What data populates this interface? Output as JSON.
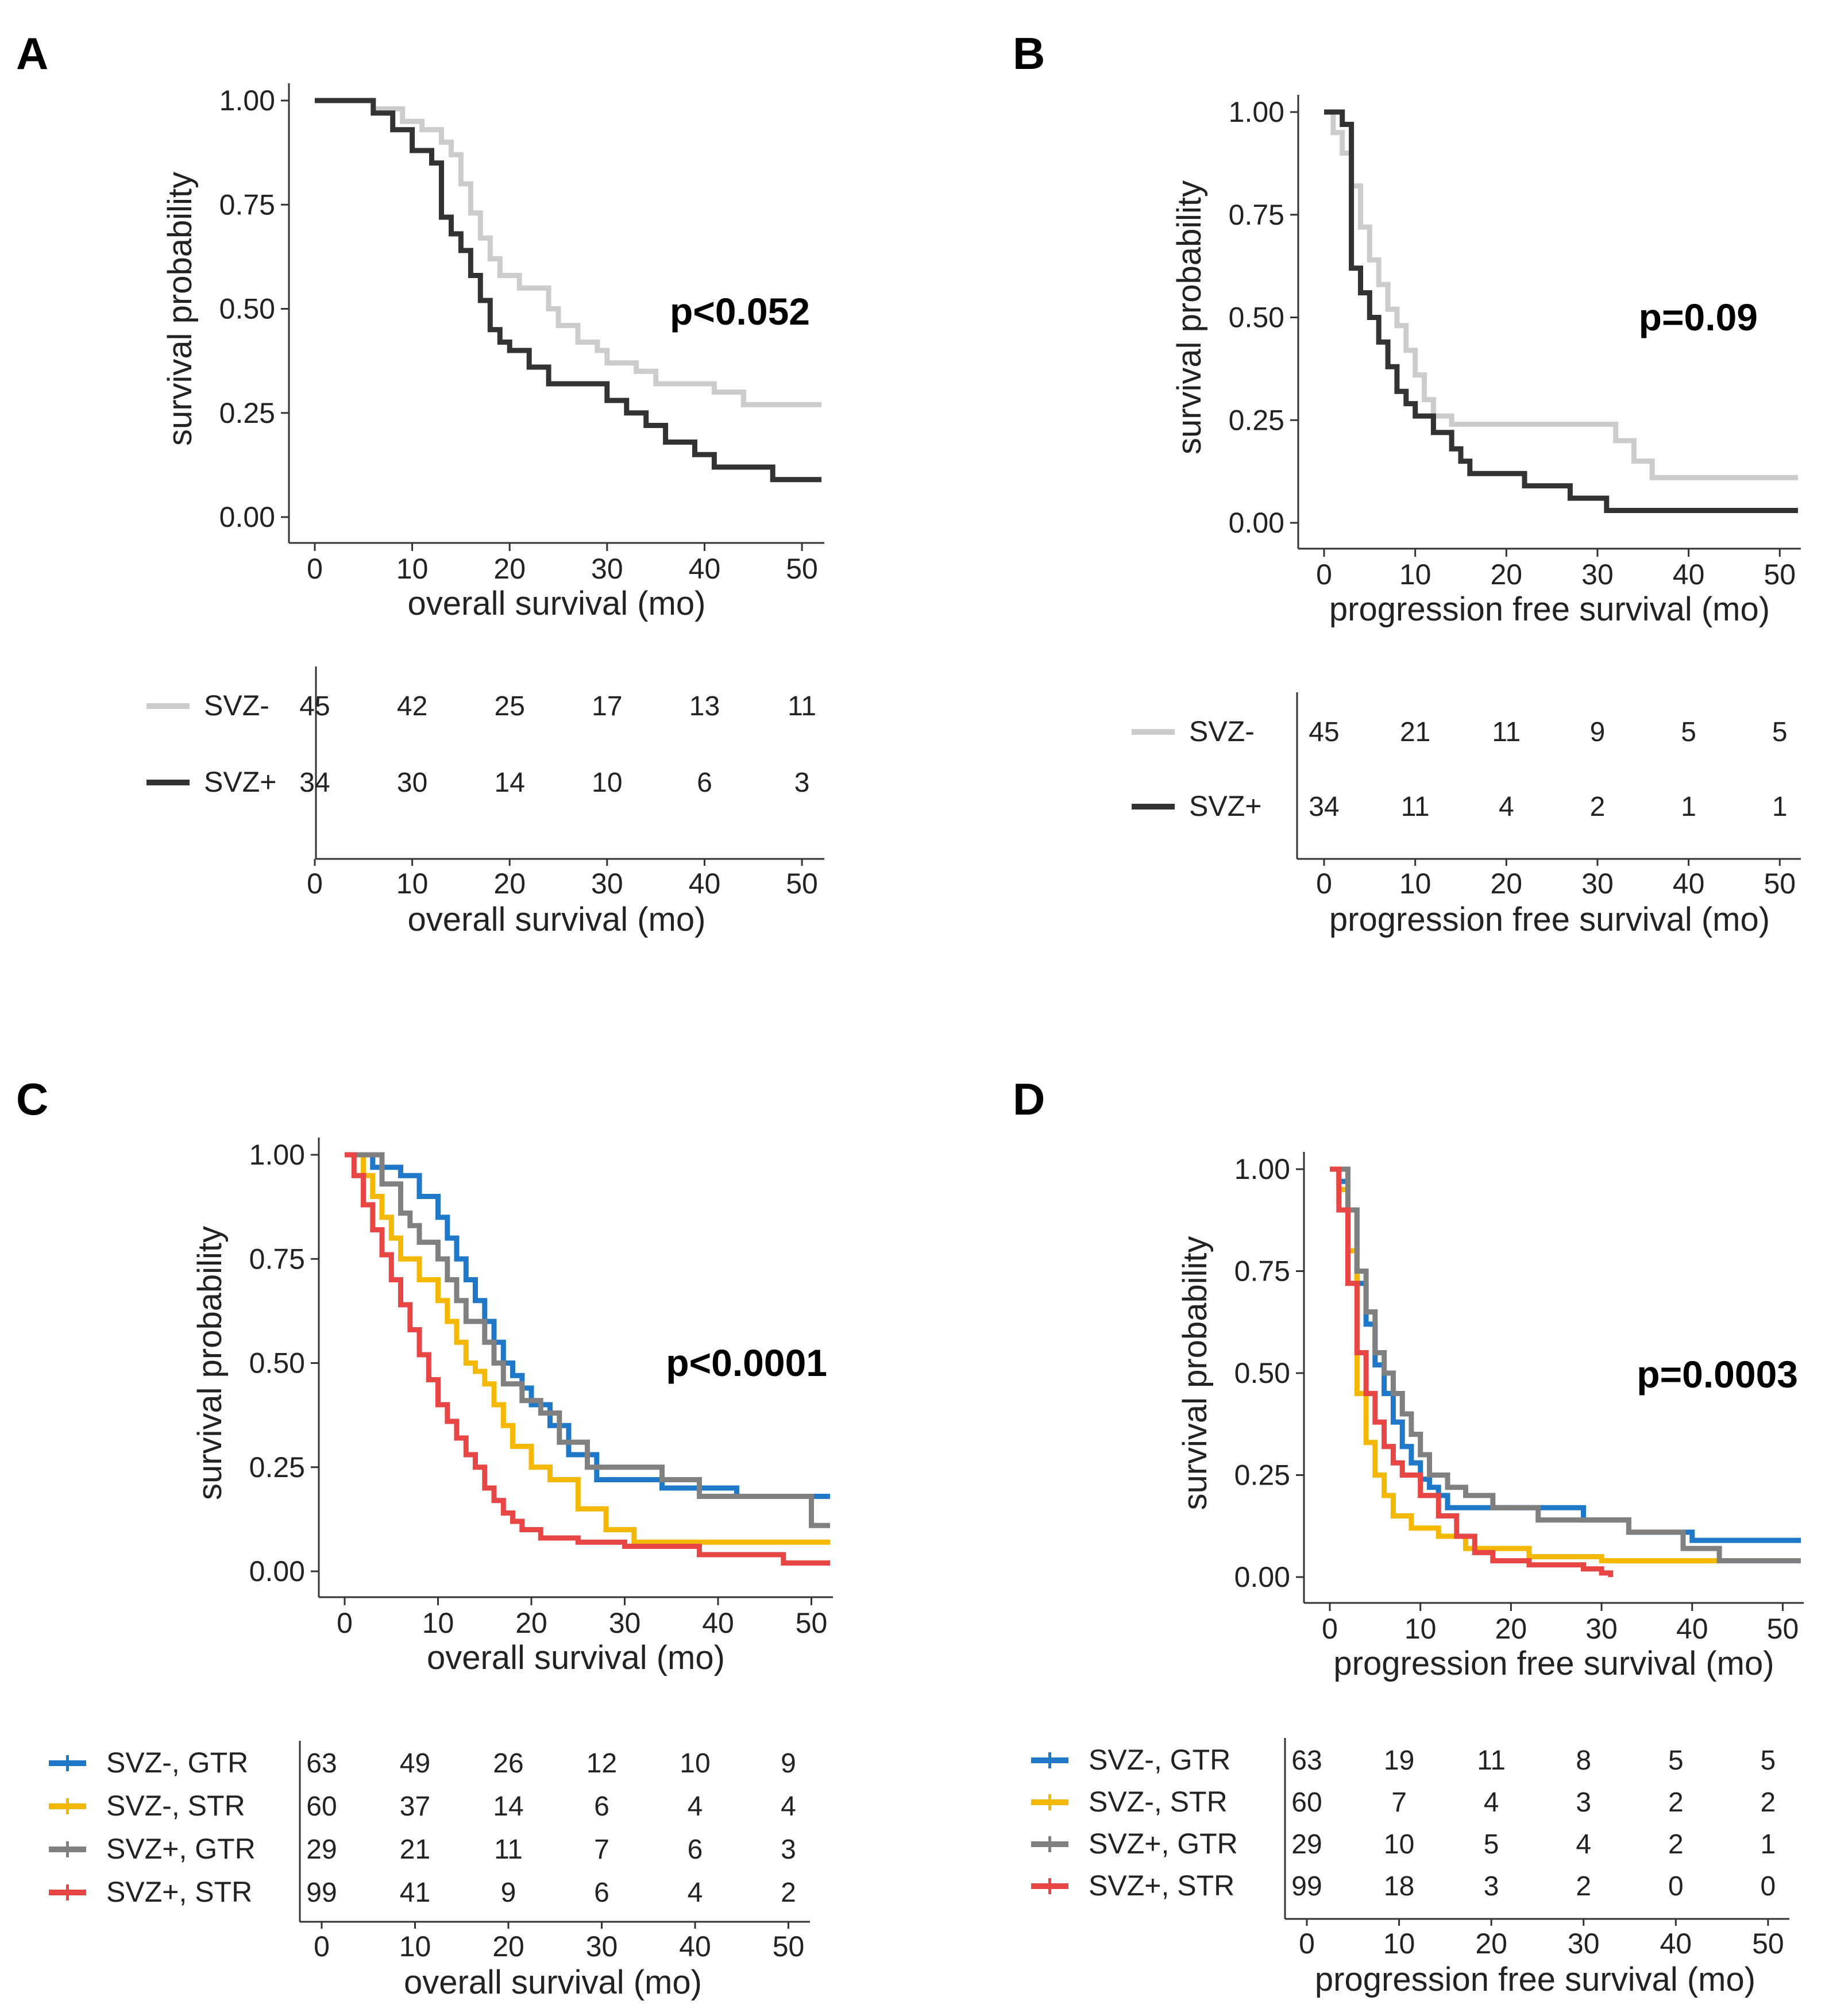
{
  "chart_data": [
    {
      "type": "line",
      "panel": "A",
      "title": "",
      "xlabel": "overall survival (mo)",
      "ylabel": "survival probability",
      "xlim": [
        0,
        52
      ],
      "ylim": [
        0,
        1
      ],
      "xticks": [
        "0",
        "10",
        "20",
        "30",
        "40",
        "50"
      ],
      "yticks": [
        "0.00",
        "0.25",
        "0.50",
        "0.75",
        "1.00"
      ],
      "annotation": "p<0.052",
      "series": [
        {
          "name": "SVZ-",
          "color": "#cccccc",
          "x": [
            0,
            6,
            9,
            11,
            13,
            14,
            15,
            16,
            17,
            18,
            19,
            21,
            24,
            25,
            27,
            29,
            30,
            33,
            35,
            41,
            44,
            52
          ],
          "y": [
            1.0,
            0.98,
            0.95,
            0.93,
            0.9,
            0.87,
            0.8,
            0.73,
            0.67,
            0.62,
            0.58,
            0.55,
            0.5,
            0.46,
            0.42,
            0.4,
            0.37,
            0.35,
            0.32,
            0.3,
            0.27,
            0.27
          ]
        },
        {
          "name": "SVZ+",
          "color": "#333333",
          "x": [
            0,
            6,
            8,
            10,
            12,
            13,
            14,
            15,
            16,
            17,
            18,
            19,
            20,
            22,
            24,
            30,
            32,
            34,
            36,
            39,
            41,
            43,
            47,
            52
          ],
          "y": [
            1.0,
            0.97,
            0.93,
            0.88,
            0.85,
            0.72,
            0.68,
            0.64,
            0.58,
            0.52,
            0.45,
            0.42,
            0.4,
            0.36,
            0.32,
            0.28,
            0.25,
            0.22,
            0.18,
            0.15,
            0.12,
            0.12,
            0.09,
            0.09
          ]
        }
      ],
      "risk_table": {
        "xlabel": "overall survival (mo)",
        "times": [
          0,
          10,
          20,
          30,
          40,
          50
        ],
        "rows": [
          {
            "label": "SVZ-",
            "color": "#cccccc",
            "counts": [
              "45",
              "42",
              "25",
              "17",
              "13",
              "11"
            ]
          },
          {
            "label": "SVZ+",
            "color": "#333333",
            "counts": [
              "34",
              "30",
              "14",
              "10",
              "6",
              "3"
            ]
          }
        ]
      }
    },
    {
      "type": "line",
      "panel": "B",
      "title": "",
      "xlabel": "progression free survival (mo)",
      "ylabel": "survival probability",
      "xlim": [
        0,
        52
      ],
      "ylim": [
        0,
        1
      ],
      "xticks": [
        "0",
        "10",
        "20",
        "30",
        "40",
        "50"
      ],
      "yticks": [
        "0.00",
        "0.25",
        "0.50",
        "0.75",
        "1.00"
      ],
      "annotation": "p=0.09",
      "series": [
        {
          "name": "SVZ-",
          "color": "#cccccc",
          "x": [
            0,
            1,
            2,
            3,
            4,
            5,
            6,
            7,
            8,
            9,
            10,
            11,
            12,
            14,
            15,
            32,
            34,
            36,
            52
          ],
          "y": [
            1.0,
            0.95,
            0.9,
            0.82,
            0.72,
            0.64,
            0.58,
            0.52,
            0.48,
            0.42,
            0.36,
            0.3,
            0.26,
            0.24,
            0.24,
            0.2,
            0.15,
            0.11,
            0.11
          ]
        },
        {
          "name": "SVZ+",
          "color": "#333333",
          "x": [
            0,
            2,
            3,
            4,
            5,
            6,
            7,
            8,
            9,
            10,
            12,
            14,
            15,
            16,
            17,
            22,
            27,
            31,
            52
          ],
          "y": [
            1.0,
            0.97,
            0.62,
            0.56,
            0.5,
            0.44,
            0.38,
            0.32,
            0.29,
            0.26,
            0.22,
            0.18,
            0.15,
            0.12,
            0.12,
            0.09,
            0.06,
            0.03,
            0.03
          ]
        }
      ],
      "risk_table": {
        "xlabel": "progression free survival (mo)",
        "times": [
          0,
          10,
          20,
          30,
          40,
          50
        ],
        "rows": [
          {
            "label": "SVZ-",
            "color": "#cccccc",
            "counts": [
              "45",
              "21",
              "11",
              "9",
              "5",
              "5"
            ]
          },
          {
            "label": "SVZ+",
            "color": "#333333",
            "counts": [
              "34",
              "11",
              "4",
              "2",
              "1",
              "1"
            ]
          }
        ]
      }
    },
    {
      "type": "line",
      "panel": "C",
      "title": "",
      "xlabel": "overall survival (mo)",
      "ylabel": "survival probability",
      "xlim": [
        0,
        52
      ],
      "ylim": [
        0,
        1
      ],
      "xticks": [
        "0",
        "10",
        "20",
        "30",
        "40",
        "50"
      ],
      "yticks": [
        "0.00",
        "0.25",
        "0.50",
        "0.75",
        "1.00"
      ],
      "annotation": "p<0.0001",
      "series": [
        {
          "name": "SVZ-, GTR",
          "color": "#1f78c8",
          "x": [
            0,
            3,
            6,
            8,
            10,
            11,
            12,
            13,
            14,
            15,
            16,
            17,
            18,
            19,
            20,
            22,
            24,
            27,
            34,
            42,
            52
          ],
          "y": [
            1.0,
            0.97,
            0.95,
            0.9,
            0.85,
            0.8,
            0.75,
            0.7,
            0.65,
            0.6,
            0.55,
            0.5,
            0.47,
            0.44,
            0.4,
            0.35,
            0.28,
            0.22,
            0.2,
            0.18,
            0.18
          ]
        },
        {
          "name": "SVZ-, STR",
          "color": "#f5b800",
          "x": [
            0,
            2,
            3,
            4,
            5,
            6,
            8,
            10,
            11,
            12,
            13,
            14,
            15,
            16,
            17,
            18,
            20,
            22,
            25,
            28,
            31,
            52
          ],
          "y": [
            1.0,
            0.95,
            0.9,
            0.85,
            0.8,
            0.75,
            0.7,
            0.65,
            0.6,
            0.55,
            0.5,
            0.48,
            0.45,
            0.4,
            0.35,
            0.3,
            0.25,
            0.22,
            0.15,
            0.1,
            0.07,
            0.07
          ]
        },
        {
          "name": "SVZ+, GTR",
          "color": "#808080",
          "x": [
            0,
            4,
            6,
            7,
            8,
            10,
            11,
            12,
            13,
            15,
            16,
            17,
            19,
            21,
            23,
            26,
            34,
            38,
            50,
            52
          ],
          "y": [
            1.0,
            0.93,
            0.86,
            0.83,
            0.79,
            0.75,
            0.7,
            0.65,
            0.6,
            0.55,
            0.5,
            0.45,
            0.41,
            0.38,
            0.31,
            0.25,
            0.22,
            0.18,
            0.11,
            0.11
          ]
        },
        {
          "name": "SVZ+, STR",
          "color": "#e84545",
          "x": [
            0,
            1,
            2,
            3,
            4,
            5,
            6,
            7,
            8,
            9,
            10,
            11,
            12,
            13,
            14,
            15,
            16,
            17,
            18,
            19,
            21,
            25,
            30,
            38,
            47,
            52
          ],
          "y": [
            1.0,
            0.95,
            0.88,
            0.82,
            0.76,
            0.7,
            0.64,
            0.58,
            0.52,
            0.46,
            0.4,
            0.36,
            0.32,
            0.28,
            0.25,
            0.2,
            0.17,
            0.14,
            0.12,
            0.1,
            0.08,
            0.07,
            0.06,
            0.04,
            0.02,
            0.02
          ]
        }
      ],
      "risk_table": {
        "xlabel": "overall survival (mo)",
        "times": [
          0,
          10,
          20,
          30,
          40,
          50
        ],
        "rows": [
          {
            "label": "SVZ-, GTR",
            "color": "#1f78c8",
            "counts": [
              "63",
              "49",
              "26",
              "12",
              "10",
              "9"
            ]
          },
          {
            "label": "SVZ-, STR",
            "color": "#f5b800",
            "counts": [
              "60",
              "37",
              "14",
              "6",
              "4",
              "4"
            ]
          },
          {
            "label": "SVZ+, GTR",
            "color": "#808080",
            "counts": [
              "29",
              "21",
              "11",
              "7",
              "6",
              "3"
            ]
          },
          {
            "label": "SVZ+, STR",
            "color": "#e84545",
            "counts": [
              "99",
              "41",
              "9",
              "6",
              "4",
              "2"
            ]
          }
        ]
      }
    },
    {
      "type": "line",
      "panel": "D",
      "title": "",
      "xlabel": "progression free survival (mo)",
      "ylabel": "survival probability",
      "xlim": [
        0,
        52
      ],
      "ylim": [
        0,
        1
      ],
      "xticks": [
        "0",
        "10",
        "20",
        "30",
        "40",
        "50"
      ],
      "yticks": [
        "0.00",
        "0.25",
        "0.50",
        "0.75",
        "1.00"
      ],
      "annotation": "p=0.0003",
      "series": [
        {
          "name": "SVZ-, GTR",
          "color": "#1f78c8",
          "x": [
            0,
            1,
            2,
            3,
            4,
            5,
            6,
            7,
            8,
            9,
            10,
            11,
            12,
            13,
            16,
            28,
            33,
            40,
            52
          ],
          "y": [
            1.0,
            0.97,
            0.9,
            0.72,
            0.62,
            0.52,
            0.45,
            0.38,
            0.32,
            0.28,
            0.24,
            0.22,
            0.2,
            0.17,
            0.17,
            0.14,
            0.11,
            0.09,
            0.09
          ]
        },
        {
          "name": "SVZ-, STR",
          "color": "#f5b800",
          "x": [
            0,
            1,
            2,
            3,
            4,
            5,
            6,
            7,
            9,
            12,
            15,
            22,
            30,
            43,
            52
          ],
          "y": [
            1.0,
            0.95,
            0.8,
            0.45,
            0.33,
            0.25,
            0.2,
            0.15,
            0.12,
            0.1,
            0.07,
            0.05,
            0.04,
            0.04,
            0.04
          ]
        },
        {
          "name": "SVZ+, GTR",
          "color": "#808080",
          "x": [
            0,
            2,
            3,
            4,
            5,
            6,
            7,
            8,
            9,
            10,
            11,
            13,
            15,
            18,
            23,
            33,
            39,
            43,
            52
          ],
          "y": [
            1.0,
            0.9,
            0.75,
            0.65,
            0.55,
            0.5,
            0.45,
            0.4,
            0.35,
            0.3,
            0.25,
            0.22,
            0.2,
            0.17,
            0.14,
            0.11,
            0.07,
            0.04,
            0.04
          ]
        },
        {
          "name": "SVZ+, STR",
          "color": "#e84545",
          "x": [
            0,
            1,
            2,
            3,
            4,
            5,
            6,
            7,
            8,
            10,
            12,
            14,
            16,
            18,
            22,
            28,
            30,
            31
          ],
          "y": [
            1.0,
            0.9,
            0.72,
            0.55,
            0.45,
            0.38,
            0.32,
            0.28,
            0.25,
            0.2,
            0.15,
            0.1,
            0.06,
            0.04,
            0.03,
            0.02,
            0.01,
            0.0
          ]
        }
      ],
      "risk_table": {
        "xlabel": "progression free survival (mo)",
        "times": [
          0,
          10,
          20,
          30,
          40,
          50
        ],
        "rows": [
          {
            "label": "SVZ-, GTR",
            "color": "#1f78c8",
            "counts": [
              "63",
              "19",
              "11",
              "8",
              "5",
              "5"
            ]
          },
          {
            "label": "SVZ-, STR",
            "color": "#f5b800",
            "counts": [
              "60",
              "7",
              "4",
              "3",
              "2",
              "2"
            ]
          },
          {
            "label": "SVZ+, GTR",
            "color": "#808080",
            "counts": [
              "29",
              "10",
              "5",
              "4",
              "2",
              "1"
            ]
          },
          {
            "label": "SVZ+, STR",
            "color": "#e84545",
            "counts": [
              "99",
              "18",
              "3",
              "2",
              "0",
              "0"
            ]
          }
        ]
      }
    }
  ]
}
